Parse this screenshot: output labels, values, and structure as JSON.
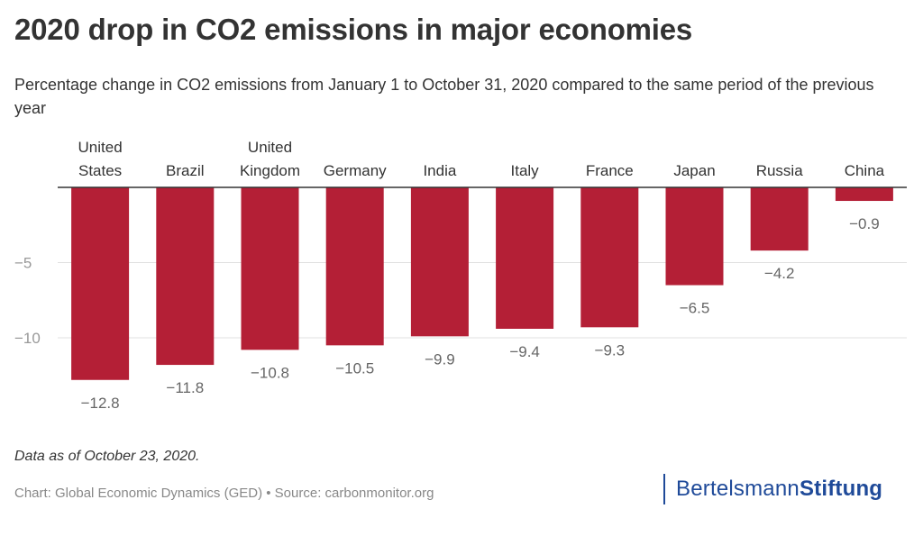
{
  "title": "2020 drop in CO2 emissions in major economies",
  "subtitle": "Percentage change in CO2 emissions from January 1 to October 31, 2020 compared to the same period of the previous year",
  "note": "Data as of October 23, 2020.",
  "credits": "Chart: Global Economic Dynamics (GED) • Source: carbonmonitor.org",
  "logo": {
    "part1": "Bertelsmann",
    "part2": "Stiftung"
  },
  "colors": {
    "bar": "#b41f36",
    "text": "#333333",
    "axis_text": "#999999",
    "grid": "#e0e0e0",
    "label": "#666666",
    "logo": "#1f4a99"
  },
  "chart_data": {
    "type": "bar",
    "categories": [
      [
        "United",
        "States"
      ],
      [
        "Brazil"
      ],
      [
        "United",
        "Kingdom"
      ],
      [
        "Germany"
      ],
      [
        "India"
      ],
      [
        "Italy"
      ],
      [
        "France"
      ],
      [
        "Japan"
      ],
      [
        "Russia"
      ],
      [
        "China"
      ]
    ],
    "values": [
      -12.8,
      -11.8,
      -10.8,
      -10.5,
      -9.9,
      -9.4,
      -9.3,
      -6.5,
      -4.2,
      -0.9
    ],
    "value_labels": [
      "−12.8",
      "−11.8",
      "−10.8",
      "−10.5",
      "−9.9",
      "−9.4",
      "−9.3",
      "−6.5",
      "−4.2",
      "−0.9"
    ],
    "yticks": [
      -5,
      -10
    ],
    "ytick_labels": [
      "−5",
      "−10"
    ],
    "ylim": [
      -13.8,
      0
    ],
    "grid": true,
    "category_axis_position": "top"
  }
}
